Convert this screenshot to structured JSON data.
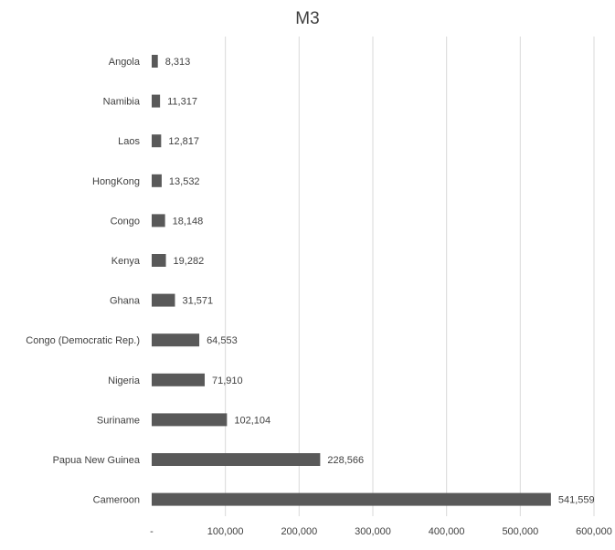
{
  "chart_data": {
    "type": "bar",
    "orientation": "horizontal",
    "title": "M3",
    "xlabel": "",
    "ylabel": "",
    "categories": [
      "Angola",
      "Namibia",
      "Laos",
      "HongKong",
      "Congo",
      "Kenya",
      "Ghana",
      "Congo (Democratic Rep.)",
      "Nigeria",
      "Suriname",
      "Papua New Guinea",
      "Cameroon"
    ],
    "values": [
      8313,
      11317,
      12817,
      13532,
      18148,
      19282,
      31571,
      64553,
      71910,
      102104,
      228566,
      541559
    ],
    "data_labels": [
      "8,313",
      "11,317",
      "12,817",
      "13,532",
      "18,148",
      "19,282",
      "31,571",
      "64,553",
      "71,910",
      "102,104",
      "228,566",
      "541,559"
    ],
    "xlim": [
      0,
      600000
    ],
    "x_ticks": [
      0,
      100000,
      200000,
      300000,
      400000,
      500000,
      600000
    ],
    "x_tick_labels": [
      "-",
      "100,000",
      "200,000",
      "300,000",
      "400,000",
      "500,000",
      "600,000"
    ],
    "grid": true,
    "legend": "none",
    "bar_color": "#595959",
    "grid_color": "#d9d9d9"
  }
}
